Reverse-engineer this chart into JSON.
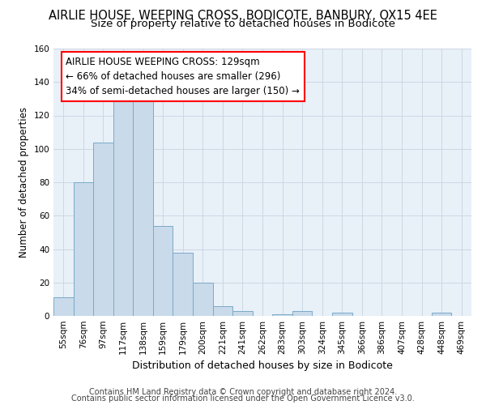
{
  "title": "AIRLIE HOUSE, WEEPING CROSS, BODICOTE, BANBURY, OX15 4EE",
  "subtitle": "Size of property relative to detached houses in Bodicote",
  "xlabel": "Distribution of detached houses by size in Bodicote",
  "ylabel": "Number of detached properties",
  "bar_color": "#c9daea",
  "bar_edge_color": "#7aaac8",
  "categories": [
    "55sqm",
    "76sqm",
    "97sqm",
    "117sqm",
    "138sqm",
    "159sqm",
    "179sqm",
    "200sqm",
    "221sqm",
    "241sqm",
    "262sqm",
    "283sqm",
    "303sqm",
    "324sqm",
    "345sqm",
    "366sqm",
    "386sqm",
    "407sqm",
    "428sqm",
    "448sqm",
    "469sqm"
  ],
  "values": [
    11,
    80,
    104,
    130,
    130,
    54,
    38,
    20,
    6,
    3,
    0,
    1,
    3,
    0,
    2,
    0,
    0,
    0,
    0,
    2,
    0
  ],
  "ylim": [
    0,
    160
  ],
  "yticks": [
    0,
    20,
    40,
    60,
    80,
    100,
    120,
    140,
    160
  ],
  "annotation_line1": "AIRLIE HOUSE WEEPING CROSS: 129sqm",
  "annotation_line2": "← 66% of detached houses are smaller (296)",
  "annotation_line3": "34% of semi-detached houses are larger (150) →",
  "footer1": "Contains HM Land Registry data © Crown copyright and database right 2024.",
  "footer2": "Contains public sector information licensed under the Open Government Licence v3.0.",
  "grid_color": "#c8d4e0",
  "bg_color": "#e8f0f8",
  "title_fontsize": 10.5,
  "subtitle_fontsize": 9.5,
  "xlabel_fontsize": 9,
  "ylabel_fontsize": 8.5,
  "tick_fontsize": 7.5,
  "annotation_fontsize": 8.5,
  "footer_fontsize": 7
}
